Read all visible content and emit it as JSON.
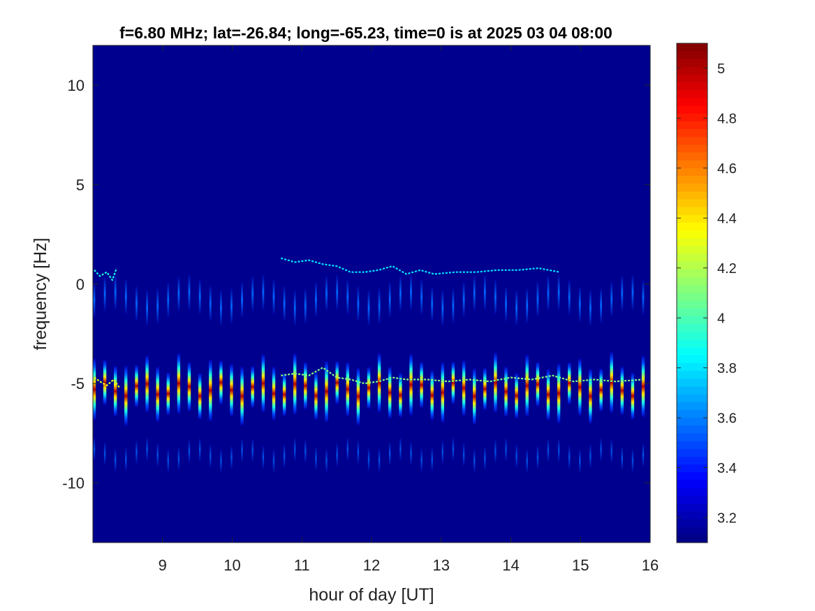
{
  "chart_data": {
    "type": "heatmap",
    "title": "f=6.80 MHz;  lat=-26.84; long=-65.23, time=0 is at 2025 03 04 08:00",
    "xlabel": "hour of day [UT]",
    "ylabel": "frequency [Hz]",
    "xlim": [
      8,
      16
    ],
    "ylim": [
      -13,
      12
    ],
    "x_ticks": [
      9,
      10,
      11,
      12,
      13,
      14,
      15,
      16
    ],
    "x_tick_labels": [
      "9",
      "10",
      "11",
      "12",
      "13",
      "14",
      "15",
      "16"
    ],
    "y_ticks": [
      10,
      5,
      0,
      -5,
      -10
    ],
    "y_tick_labels": [
      "10",
      "5",
      "0",
      "-5",
      "-10"
    ],
    "colormap": "jet",
    "background_color": "#00008f",
    "color_limits": [
      3.1,
      5.1
    ],
    "colorbar_ticks": [
      5,
      4.8,
      4.6,
      4.4,
      4.2,
      4,
      3.8,
      3.6,
      3.4,
      3.2
    ],
    "colorbar_tick_labels": [
      "5",
      "4.8",
      "4.6",
      "4.4",
      "4.2",
      "4",
      "3.8",
      "3.6",
      "3.4",
      "3.2"
    ],
    "periodic_streaks": {
      "x_start": 8.02,
      "x_end": 15.9,
      "count": 53,
      "main_band_center_hz": -5.3,
      "main_band_half_height_hz": 1.3,
      "peak_value": 5.0,
      "upper_echo_center_hz": -0.8,
      "lower_echo_center_hz": -8.6,
      "upper_echo_range_hz": [
        0.5,
        -3.0
      ]
    },
    "traces": [
      {
        "points": [
          [
            8.02,
            0.7
          ],
          [
            8.1,
            0.4
          ],
          [
            8.2,
            0.6
          ],
          [
            8.28,
            0.2
          ],
          [
            8.34,
            0.8
          ]
        ],
        "value": 3.9
      },
      {
        "points": [
          [
            8.02,
            -4.7
          ],
          [
            8.1,
            -4.9
          ],
          [
            8.2,
            -5.1
          ],
          [
            8.3,
            -4.8
          ],
          [
            8.38,
            -5.2
          ]
        ],
        "value": 4.3
      },
      {
        "points": [
          [
            10.7,
            1.3
          ],
          [
            10.9,
            1.1
          ],
          [
            11.1,
            1.2
          ],
          [
            11.3,
            1.0
          ],
          [
            11.5,
            0.9
          ],
          [
            11.7,
            0.6
          ],
          [
            11.9,
            0.6
          ],
          [
            12.1,
            0.7
          ],
          [
            12.3,
            0.9
          ],
          [
            12.5,
            0.5
          ],
          [
            12.7,
            0.7
          ],
          [
            12.9,
            0.5
          ],
          [
            13.2,
            0.6
          ],
          [
            13.5,
            0.6
          ],
          [
            13.8,
            0.7
          ],
          [
            14.1,
            0.7
          ],
          [
            14.4,
            0.8
          ],
          [
            14.7,
            0.6
          ]
        ],
        "value": 3.8
      },
      {
        "points": [
          [
            10.7,
            -4.6
          ],
          [
            10.9,
            -4.5
          ],
          [
            11.1,
            -4.6
          ],
          [
            11.3,
            -4.2
          ],
          [
            11.5,
            -4.7
          ],
          [
            11.7,
            -4.8
          ],
          [
            11.9,
            -5.0
          ],
          [
            12.1,
            -4.9
          ],
          [
            12.3,
            -4.7
          ],
          [
            12.5,
            -4.8
          ],
          [
            12.8,
            -4.8
          ],
          [
            13.1,
            -4.9
          ],
          [
            13.4,
            -4.8
          ],
          [
            13.7,
            -4.9
          ],
          [
            14.0,
            -4.7
          ],
          [
            14.3,
            -4.8
          ],
          [
            14.6,
            -4.6
          ],
          [
            14.9,
            -4.9
          ],
          [
            15.2,
            -4.8
          ],
          [
            15.5,
            -4.9
          ],
          [
            15.9,
            -4.8
          ]
        ],
        "value": 4.1
      }
    ]
  }
}
